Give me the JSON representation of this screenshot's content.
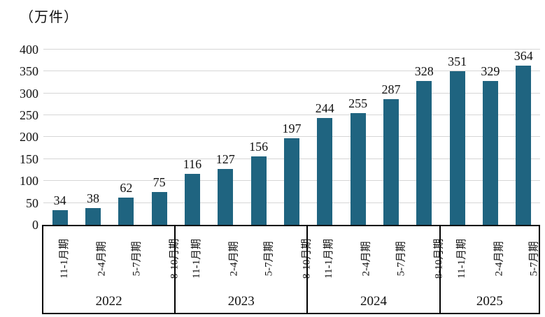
{
  "unit_label": "（万件）",
  "chart_data": {
    "type": "bar",
    "title": "",
    "unit_label": "（万件）",
    "ylabel": "（万件）",
    "xlabel": "",
    "ylim": [
      0,
      400
    ],
    "ytick_step": 50,
    "ytick_labels": [
      "0",
      "50",
      "100",
      "150",
      "200",
      "250",
      "300",
      "350",
      "400"
    ],
    "grid": true,
    "legend": "none",
    "bar_color": "#1F6480",
    "gridline_color": "#D6D6D6",
    "axis_border_color": "#000000",
    "categories": [
      "11-1月期",
      "2-4月期",
      "5-7月期",
      "8-10月期",
      "11-1月期",
      "2-4月期",
      "5-7月期",
      "8-10月期",
      "11-1月期",
      "2-4月期",
      "5-7月期",
      "8-10月期",
      "11-1月期",
      "2-4月期",
      "5-7月期"
    ],
    "values": [
      34,
      38,
      62,
      75,
      116,
      127,
      156,
      197,
      244,
      255,
      287,
      328,
      351,
      329,
      364
    ],
    "groups": [
      {
        "year": "2022",
        "categories": [
          "11-1月期",
          "2-4月期",
          "5-7月期",
          "8-10月期"
        ],
        "values": [
          34,
          38,
          62,
          75
        ]
      },
      {
        "year": "2023",
        "categories": [
          "11-1月期",
          "2-4月期",
          "5-7月期",
          "8-10月期"
        ],
        "values": [
          116,
          127,
          156,
          197
        ]
      },
      {
        "year": "2024",
        "categories": [
          "11-1月期",
          "2-4月期",
          "5-7月期",
          "8-10月期"
        ],
        "values": [
          244,
          255,
          287,
          328
        ]
      },
      {
        "year": "2025",
        "categories": [
          "11-1月期",
          "2-4月期",
          "5-7月期"
        ],
        "values": [
          351,
          329,
          364
        ]
      }
    ]
  }
}
